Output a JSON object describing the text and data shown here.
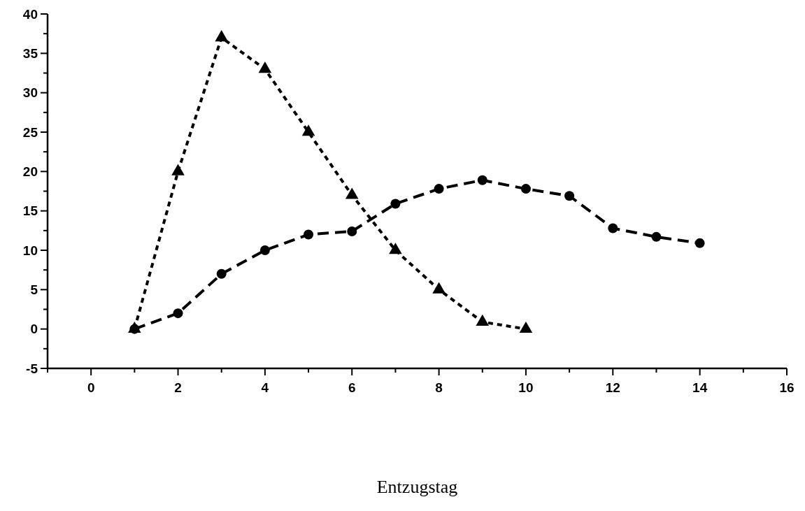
{
  "chart_data": {
    "type": "line",
    "xlabel": "Entzugstag",
    "xlim": [
      -1,
      16
    ],
    "xticks": [
      {
        "value": -1,
        "label": null
      },
      0,
      {
        "value": 1,
        "label": null
      },
      2,
      {
        "value": 3,
        "label": null
      },
      4,
      {
        "value": 5,
        "label": null
      },
      6,
      {
        "value": 7,
        "label": null
      },
      8,
      {
        "value": 9,
        "label": null
      },
      10,
      {
        "value": 11,
        "label": null
      },
      12,
      {
        "value": 13,
        "label": null
      },
      14,
      {
        "value": 15,
        "label": null
      },
      16
    ],
    "ylim": [
      -5,
      40
    ],
    "yticks": [
      -5,
      {
        "value": -2.5,
        "label": null
      },
      0,
      {
        "value": 2.5,
        "label": null
      },
      5,
      {
        "value": 7.5,
        "label": null
      },
      10,
      {
        "value": 12.5,
        "label": null
      },
      15,
      {
        "value": 17.5,
        "label": null
      },
      20,
      {
        "value": 22.5,
        "label": null
      },
      25,
      {
        "value": 27.5,
        "label": null
      },
      30,
      {
        "value": 32.5,
        "label": null
      },
      35,
      {
        "value": 37.5,
        "label": null
      },
      40
    ],
    "grid": false,
    "series": [
      {
        "color": "#000000",
        "marker": "triangle",
        "line_style": "dotted",
        "x": [
          1,
          2,
          3,
          4,
          5,
          6,
          7,
          8,
          9,
          10
        ],
        "values": [
          0,
          20,
          37,
          33,
          25,
          17,
          10,
          5,
          0.9,
          0
        ]
      },
      {
        "color": "#000000",
        "marker": "circle",
        "line_style": "dashed",
        "x": [
          1,
          2,
          3,
          4,
          5,
          6,
          7,
          8,
          9,
          10,
          11,
          12,
          13,
          14
        ],
        "values": [
          0,
          2,
          7,
          10,
          12,
          12.4,
          15.9,
          17.8,
          18.9,
          17.8,
          16.9,
          12.8,
          11.7,
          10.9
        ]
      }
    ]
  }
}
